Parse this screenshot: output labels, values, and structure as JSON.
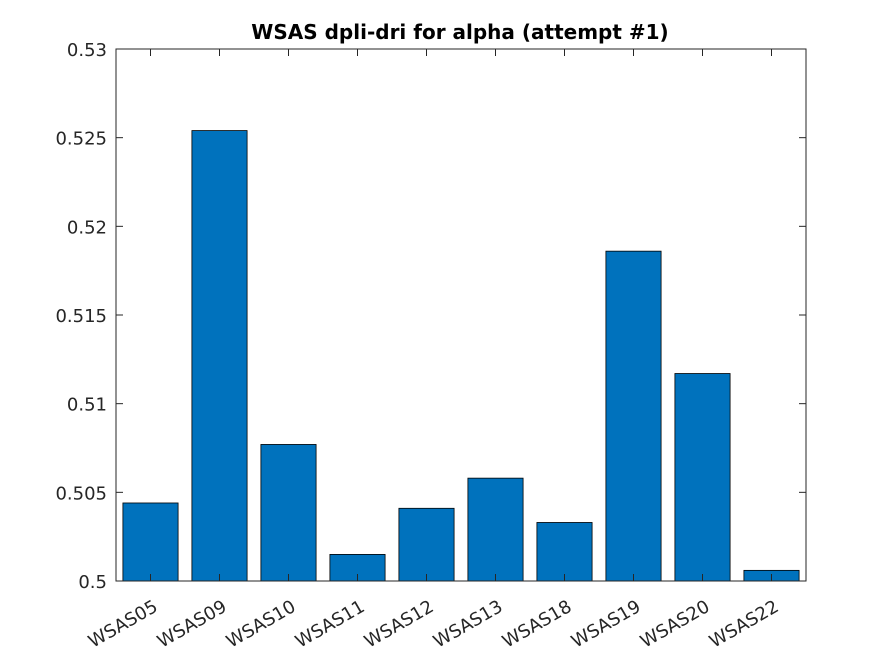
{
  "chart_data": {
    "type": "bar",
    "title": "WSAS dpli-dri for alpha (attempt #1)",
    "xlabel": "",
    "ylabel": "",
    "categories": [
      "WSAS05",
      "WSAS09",
      "WSAS10",
      "WSAS11",
      "WSAS12",
      "WSAS13",
      "WSAS18",
      "WSAS19",
      "WSAS20",
      "WSAS22"
    ],
    "values": [
      0.5044,
      0.5254,
      0.5077,
      0.5015,
      0.5041,
      0.5058,
      0.5033,
      0.5186,
      0.5117,
      0.5006
    ],
    "ylim": [
      0.5,
      0.53
    ],
    "yticks": [
      0.5,
      0.505,
      0.51,
      0.515,
      0.52,
      0.525,
      0.53
    ],
    "ytick_labels": [
      "0.5",
      "0.505",
      "0.51",
      "0.515",
      "0.52",
      "0.525",
      "0.53"
    ],
    "bar_color": "#0072BD",
    "grid": false,
    "legend": "none"
  }
}
